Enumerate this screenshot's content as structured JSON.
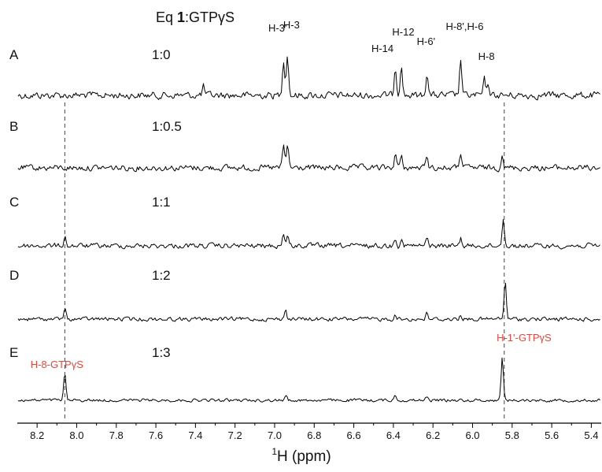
{
  "chart_data": {
    "type": "line",
    "title_prefix": "Eq ",
    "title_bold": "1",
    "title_suffix": ":GTPγS",
    "xlabel_sup": "1",
    "xlabel_main": "H (ppm)",
    "x_reversed": true,
    "xlim": [
      8.3,
      5.35
    ],
    "x_ticks": [
      "8.2",
      "8.0",
      "7.8",
      "7.6",
      "7.4",
      "7.2",
      "7.0",
      "6.8",
      "6.6",
      "6.4",
      "6.2",
      "6.0",
      "5.8",
      "5.6",
      "5.4"
    ],
    "x_tick_values": [
      8.2,
      8.0,
      7.8,
      7.6,
      7.4,
      7.2,
      7.0,
      6.8,
      6.6,
      6.4,
      6.2,
      6.0,
      5.8,
      5.6,
      5.4
    ],
    "dashed_lines": [
      8.06,
      5.84
    ],
    "series": [
      {
        "name": "A",
        "ratio": "1:0",
        "peaks": [
          [
            7.36,
            0.2
          ],
          [
            6.955,
            0.85
          ],
          [
            6.935,
            0.95
          ],
          [
            6.39,
            0.68
          ],
          [
            6.36,
            0.75
          ],
          [
            6.23,
            0.55
          ],
          [
            6.06,
            0.82
          ],
          [
            5.94,
            0.35
          ],
          [
            5.92,
            0.25
          ]
        ]
      },
      {
        "name": "B",
        "ratio": "1:0.5",
        "peaks": [
          [
            6.955,
            0.6
          ],
          [
            6.935,
            0.65
          ],
          [
            6.39,
            0.42
          ],
          [
            6.36,
            0.3
          ],
          [
            6.23,
            0.38
          ],
          [
            6.06,
            0.45
          ],
          [
            5.85,
            0.42
          ]
        ]
      },
      {
        "name": "C",
        "ratio": "1:1",
        "peaks": [
          [
            8.06,
            0.25
          ],
          [
            6.955,
            0.35
          ],
          [
            6.935,
            0.3
          ],
          [
            6.39,
            0.25
          ],
          [
            6.36,
            0.2
          ],
          [
            6.23,
            0.2
          ],
          [
            6.06,
            0.22
          ],
          [
            5.845,
            0.8
          ]
        ]
      },
      {
        "name": "D",
        "ratio": "1:2",
        "peaks": [
          [
            8.06,
            0.25
          ],
          [
            6.945,
            0.25
          ],
          [
            6.39,
            0.12
          ],
          [
            6.23,
            0.15
          ],
          [
            6.06,
            0.12
          ],
          [
            5.835,
            0.95
          ]
        ]
      },
      {
        "name": "E",
        "ratio": "1:3",
        "peaks": [
          [
            8.06,
            0.6
          ],
          [
            6.94,
            0.12
          ],
          [
            6.39,
            0.12
          ],
          [
            6.23,
            0.1
          ],
          [
            5.85,
            1.0
          ]
        ]
      }
    ],
    "annotations": [
      {
        "text": "H-3'",
        "x": 6.985
      },
      {
        "text": "H-3",
        "x": 6.915
      },
      {
        "text": "H-14",
        "x": 6.455
      },
      {
        "text": "H-12",
        "x": 6.35
      },
      {
        "text": "H-6'",
        "x": 6.235
      },
      {
        "text": "H-8',H-6",
        "x": 6.04
      },
      {
        "text": "H-8",
        "x": 5.93
      }
    ],
    "red_annotations": [
      {
        "text": "H-8-GTPγS",
        "x": 8.1
      },
      {
        "text": "H-1'-GTPγS",
        "x": 5.74
      }
    ]
  }
}
